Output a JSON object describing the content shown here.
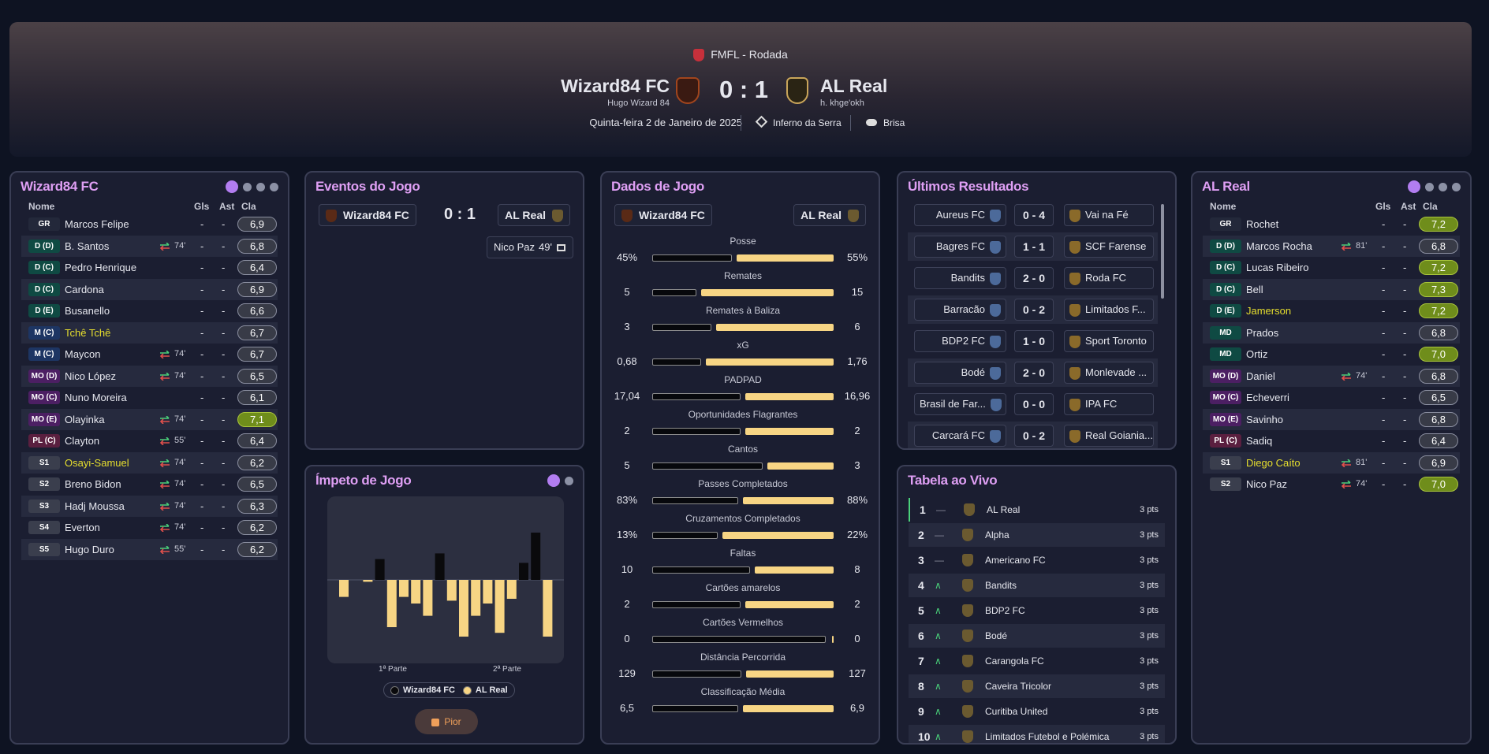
{
  "header": {
    "competition": "FMFL - Rodada",
    "home": {
      "name": "Wizard84 FC",
      "manager": "Hugo Wizard 84"
    },
    "score": "0 : 1",
    "away": {
      "name": "AL Real",
      "manager": "h. khge'okh"
    },
    "date": "Quinta-feira 2 de Janeiro de 2025",
    "stadium": "Inferno da Serra",
    "weather": "Brisa"
  },
  "home_lineup": {
    "title": "Wizard84 FC",
    "columns": [
      "Nome",
      "Gls",
      "Ast",
      "Cla"
    ],
    "players": [
      {
        "pos": "GR",
        "name": "Marcos Felipe",
        "gls": "-",
        "ast": "-",
        "rating": "6,9"
      },
      {
        "pos": "D (D)",
        "name": "B. Santos",
        "sub": "74'",
        "gls": "-",
        "ast": "-",
        "rating": "6,8"
      },
      {
        "pos": "D (C)",
        "name": "Pedro Henrique",
        "gls": "-",
        "ast": "-",
        "rating": "6,4"
      },
      {
        "pos": "D (C)",
        "name": "Cardona",
        "gls": "-",
        "ast": "-",
        "rating": "6,9"
      },
      {
        "pos": "D (E)",
        "name": "Busanello",
        "gls": "-",
        "ast": "-",
        "rating": "6,6"
      },
      {
        "pos": "M (C)",
        "name": "Tchê Tchê",
        "booked": true,
        "gls": "-",
        "ast": "-",
        "rating": "6,7"
      },
      {
        "pos": "M (C)",
        "name": "Maycon",
        "sub": "74'",
        "gls": "-",
        "ast": "-",
        "rating": "6,7"
      },
      {
        "pos": "MO (D)",
        "name": "Nico López",
        "sub": "74'",
        "gls": "-",
        "ast": "-",
        "rating": "6,5"
      },
      {
        "pos": "MO (C)",
        "name": "Nuno Moreira",
        "gls": "-",
        "ast": "-",
        "rating": "6,1"
      },
      {
        "pos": "MO (E)",
        "name": "Olayinka",
        "sub": "74'",
        "gls": "-",
        "ast": "-",
        "rating": "7,1"
      },
      {
        "pos": "PL (C)",
        "name": "Clayton",
        "sub": "55'",
        "gls": "-",
        "ast": "-",
        "rating": "6,4"
      },
      {
        "pos": "S1",
        "name": "Osayi-Samuel",
        "booked": true,
        "sub": "74'",
        "gls": "-",
        "ast": "-",
        "rating": "6,2"
      },
      {
        "pos": "S2",
        "name": "Breno Bidon",
        "sub": "74'",
        "gls": "-",
        "ast": "-",
        "rating": "6,5"
      },
      {
        "pos": "S3",
        "name": "Hadj Moussa",
        "sub": "74'",
        "gls": "-",
        "ast": "-",
        "rating": "6,3"
      },
      {
        "pos": "S4",
        "name": "Everton",
        "sub": "74'",
        "gls": "-",
        "ast": "-",
        "rating": "6,2"
      },
      {
        "pos": "S5",
        "name": "Hugo Duro",
        "sub": "55'",
        "gls": "-",
        "ast": "-",
        "rating": "6,2"
      }
    ]
  },
  "away_lineup": {
    "title": "AL Real",
    "columns": [
      "Nome",
      "Gls",
      "Ast",
      "Cla"
    ],
    "players": [
      {
        "pos": "GR",
        "name": "Rochet",
        "gls": "-",
        "ast": "-",
        "rating": "7,2"
      },
      {
        "pos": "D (D)",
        "name": "Marcos Rocha",
        "sub": "81'",
        "gls": "-",
        "ast": "-",
        "rating": "6,8"
      },
      {
        "pos": "D (C)",
        "name": "Lucas Ribeiro",
        "gls": "-",
        "ast": "-",
        "rating": "7,2"
      },
      {
        "pos": "D (C)",
        "name": "Bell",
        "gls": "-",
        "ast": "-",
        "rating": "7,3"
      },
      {
        "pos": "D (E)",
        "name": "Jamerson",
        "booked": true,
        "gls": "-",
        "ast": "-",
        "rating": "7,2"
      },
      {
        "pos": "MD",
        "name": "Prados",
        "gls": "-",
        "ast": "-",
        "rating": "6,8"
      },
      {
        "pos": "MD",
        "name": "Ortiz",
        "gls": "-",
        "ast": "-",
        "rating": "7,0"
      },
      {
        "pos": "MO (D)",
        "name": "Daniel",
        "sub": "74'",
        "gls": "-",
        "ast": "-",
        "rating": "6,8"
      },
      {
        "pos": "MO (C)",
        "name": "Echeverri",
        "gls": "-",
        "ast": "-",
        "rating": "6,5"
      },
      {
        "pos": "MO (E)",
        "name": "Savinho",
        "gls": "-",
        "ast": "-",
        "rating": "6,8"
      },
      {
        "pos": "PL (C)",
        "name": "Sadiq",
        "gls": "-",
        "ast": "-",
        "rating": "6,4"
      },
      {
        "pos": "S1",
        "name": "Diego Caíto",
        "booked": true,
        "sub": "81'",
        "gls": "-",
        "ast": "-",
        "rating": "6,9"
      },
      {
        "pos": "S2",
        "name": "Nico Paz",
        "sub": "74'",
        "gls": "-",
        "ast": "-",
        "rating": "7,0"
      }
    ]
  },
  "events": {
    "title": "Eventos do Jogo",
    "home": "Wizard84 FC",
    "score": "0 : 1",
    "away": "AL Real",
    "items": [
      {
        "player": "Nico Paz",
        "minute": "49'"
      }
    ]
  },
  "momentum": {
    "title": "Ímpeto de Jogo",
    "values": [
      -18,
      0,
      -2,
      22,
      -50,
      -18,
      -25,
      -38,
      28,
      -22,
      -60,
      -38,
      -25,
      -56,
      -20,
      18,
      50,
      -60
    ],
    "halves": [
      "1ª Parte",
      "2ª Parte"
    ],
    "legend": [
      {
        "name": "Wizard84 FC",
        "color": "#0a0a0c"
      },
      {
        "name": "AL Real",
        "color": "#f7d584"
      }
    ],
    "button": "Pior"
  },
  "stats": {
    "title": "Dados de Jogo",
    "home": "Wizard84 FC",
    "away": "AL Real",
    "rows": [
      {
        "label": "Posse",
        "home": "45%",
        "away": "55%"
      },
      {
        "label": "Remates",
        "home": "5",
        "away": "15"
      },
      {
        "label": "Remates à Baliza",
        "home": "3",
        "away": "6"
      },
      {
        "label": "xG",
        "home": "0,68",
        "away": "1,76"
      },
      {
        "label": "PADPAD",
        "home": "17,04",
        "away": "16,96"
      },
      {
        "label": "Oportunidades Flagrantes",
        "home": "2",
        "away": "2"
      },
      {
        "label": "Cantos",
        "home": "5",
        "away": "3"
      },
      {
        "label": "Passes Completados",
        "home": "83%",
        "away": "88%"
      },
      {
        "label": "Cruzamentos Completados",
        "home": "13%",
        "away": "22%"
      },
      {
        "label": "Faltas",
        "home": "10",
        "away": "8"
      },
      {
        "label": "Cartões amarelos",
        "home": "2",
        "away": "2"
      },
      {
        "label": "Cartões Vermelhos",
        "home": "0",
        "away": "0"
      },
      {
        "label": "Distância Percorrida",
        "home": "129",
        "away": "127"
      },
      {
        "label": "Classificação Média",
        "home": "6,5",
        "away": "6,9"
      }
    ]
  },
  "results": {
    "title": "Últimos Resultados",
    "matches": [
      {
        "home": "Aureus FC",
        "score": "0 - 4",
        "away": "Vai na Fé"
      },
      {
        "home": "Bagres FC",
        "score": "1 - 1",
        "away": "SCF Farense"
      },
      {
        "home": "Bandits",
        "score": "2 - 0",
        "away": "Roda FC"
      },
      {
        "home": "Barracão",
        "score": "0 - 2",
        "away": "Limitados F..."
      },
      {
        "home": "BDP2 FC",
        "score": "1 - 0",
        "away": "Sport Toronto"
      },
      {
        "home": "Bodé",
        "score": "2 - 0",
        "away": "Monlevade ..."
      },
      {
        "home": "Brasil de Far...",
        "score": "0 - 0",
        "away": "IPA FC"
      },
      {
        "home": "Carcará FC",
        "score": "0 - 2",
        "away": "Real Goiania..."
      }
    ]
  },
  "table": {
    "title": "Tabela ao Vivo",
    "rows": [
      {
        "pos": 1,
        "trend": "—",
        "team": "AL Real",
        "pts": "3 pts"
      },
      {
        "pos": 2,
        "trend": "—",
        "team": "Alpha",
        "pts": "3 pts"
      },
      {
        "pos": 3,
        "trend": "—",
        "team": "Americano FC",
        "pts": "3 pts"
      },
      {
        "pos": 4,
        "trend": "∧",
        "team": "Bandits",
        "pts": "3 pts"
      },
      {
        "pos": 5,
        "trend": "∧",
        "team": "BDP2 FC",
        "pts": "3 pts"
      },
      {
        "pos": 6,
        "trend": "∧",
        "team": "Bodé",
        "pts": "3 pts"
      },
      {
        "pos": 7,
        "trend": "∧",
        "team": "Carangola FC",
        "pts": "3 pts"
      },
      {
        "pos": 8,
        "trend": "∧",
        "team": "Caveira Tricolor",
        "pts": "3 pts"
      },
      {
        "pos": 9,
        "trend": "∧",
        "team": "Curitiba United",
        "pts": "3 pts"
      },
      {
        "pos": 10,
        "trend": "∧",
        "team": "Limitados Futebol e Polémica",
        "pts": "3 pts"
      }
    ]
  }
}
